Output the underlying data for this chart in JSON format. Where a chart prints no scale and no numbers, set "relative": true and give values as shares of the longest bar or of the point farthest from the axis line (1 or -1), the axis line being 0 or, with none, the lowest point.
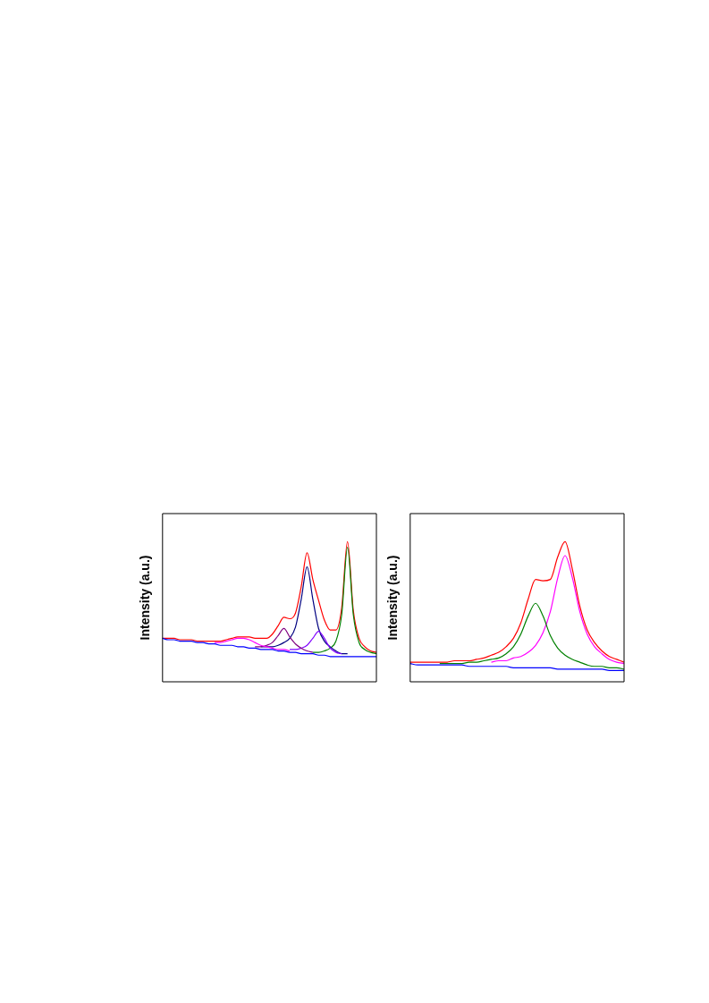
{
  "chart_data": [
    {
      "type": "line",
      "ylabel": "Intensity (a.u.)",
      "relative": true,
      "categories": [
        null,
        null,
        null,
        null,
        null,
        null,
        null,
        null,
        null,
        null,
        null,
        null,
        null,
        null,
        null,
        null,
        null,
        null,
        null,
        null,
        null,
        null,
        null,
        null,
        null,
        null,
        null,
        null,
        null,
        null,
        null,
        null,
        null,
        null,
        null,
        null,
        null,
        null
      ],
      "series": [
        {
          "color": "#0000ff",
          "values": [
            0.31,
            0.3,
            0.3,
            0.29,
            0.29,
            0.29,
            0.28,
            0.28,
            0.27,
            0.27,
            0.26,
            0.26,
            0.26,
            0.25,
            0.25,
            0.24,
            0.24,
            0.23,
            0.23,
            0.23,
            0.22,
            0.22,
            0.21,
            0.21,
            0.2,
            0.2,
            0.2,
            0.19,
            0.19,
            0.18,
            0.18,
            0.18,
            0.18,
            0.18,
            0.18,
            0.18,
            0.18,
            0.18
          ]
        },
        {
          "color": "#ff00ff",
          "values": [
            null,
            null,
            null,
            null,
            null,
            null,
            null,
            null,
            null,
            0.28,
            0.28,
            0.29,
            0.3,
            0.31,
            0.31,
            0.3,
            0.28,
            0.26,
            0.25,
            0.24,
            0.23,
            0.23,
            0.22,
            null,
            null,
            null,
            null,
            null,
            null,
            null,
            null,
            null,
            null,
            null,
            null,
            null,
            null,
            null
          ]
        },
        {
          "color": "#800080",
          "values": [
            null,
            null,
            null,
            null,
            null,
            null,
            null,
            null,
            null,
            null,
            null,
            null,
            null,
            null,
            null,
            null,
            0.25,
            0.25,
            0.26,
            0.28,
            0.33,
            0.38,
            0.32,
            0.27,
            0.24,
            0.22,
            0.21,
            null,
            null,
            null,
            null,
            null,
            null,
            null,
            null,
            null,
            null,
            null
          ]
        },
        {
          "color": "#8000ff",
          "values": [
            null,
            null,
            null,
            null,
            null,
            null,
            null,
            null,
            null,
            null,
            null,
            null,
            null,
            null,
            null,
            null,
            null,
            null,
            null,
            null,
            null,
            null,
            0.23,
            0.23,
            0.24,
            0.26,
            0.31,
            0.36,
            0.31,
            0.24,
            0.21,
            0.2,
            null,
            null,
            null,
            null,
            null,
            null
          ]
        },
        {
          "color": "#000080",
          "values": [
            null,
            null,
            null,
            null,
            null,
            null,
            null,
            null,
            null,
            null,
            null,
            null,
            null,
            null,
            null,
            null,
            null,
            0.25,
            0.25,
            0.25,
            0.26,
            0.28,
            0.31,
            0.39,
            0.59,
            0.82,
            0.59,
            0.38,
            0.29,
            0.25,
            0.22,
            0.2,
            0.2,
            null,
            null,
            null,
            null,
            null
          ]
        },
        {
          "color": "#008000",
          "values": [
            null,
            null,
            null,
            null,
            null,
            null,
            null,
            null,
            null,
            null,
            null,
            null,
            null,
            null,
            null,
            null,
            null,
            null,
            null,
            null,
            null,
            null,
            null,
            null,
            null,
            null,
            0.21,
            0.21,
            0.22,
            0.24,
            0.29,
            0.48,
            0.96,
            0.48,
            0.28,
            0.23,
            0.21,
            0.2
          ]
        },
        {
          "color": "#ff0000",
          "values": [
            0.31,
            0.31,
            0.31,
            0.3,
            0.3,
            0.3,
            0.29,
            0.29,
            0.29,
            0.29,
            0.29,
            0.3,
            0.31,
            0.32,
            0.32,
            0.32,
            0.31,
            0.31,
            0.31,
            0.34,
            0.4,
            0.46,
            0.45,
            0.49,
            0.68,
            0.92,
            0.73,
            0.58,
            0.44,
            0.37,
            0.37,
            0.53,
            1.0,
            0.51,
            0.31,
            0.25,
            0.22,
            0.21
          ]
        }
      ]
    },
    {
      "type": "line",
      "ylabel": "Intensity (a.u.)",
      "relative": true,
      "categories": [
        null,
        null,
        null,
        null,
        null,
        null,
        null,
        null,
        null,
        null,
        null,
        null,
        null,
        null,
        null,
        null,
        null,
        null,
        null,
        null,
        null,
        null,
        null,
        null,
        null,
        null,
        null,
        null,
        null,
        null
      ],
      "series": [
        {
          "color": "#0000ff",
          "values": [
            0.13,
            0.12,
            0.12,
            0.12,
            0.12,
            0.12,
            0.12,
            0.12,
            0.11,
            0.11,
            0.11,
            0.11,
            0.11,
            0.11,
            0.1,
            0.1,
            0.1,
            0.1,
            0.1,
            0.1,
            0.09,
            0.09,
            0.09,
            0.09,
            0.09,
            0.09,
            0.09,
            0.08,
            0.08,
            0.08
          ]
        },
        {
          "color": "#008000",
          "values": [
            null,
            null,
            null,
            null,
            0.13,
            0.13,
            0.13,
            0.13,
            0.14,
            0.14,
            0.15,
            0.16,
            0.17,
            0.2,
            0.25,
            0.34,
            0.47,
            0.56,
            0.47,
            0.33,
            0.24,
            0.19,
            0.16,
            0.14,
            0.12,
            0.11,
            0.11,
            0.1,
            0.1,
            0.09
          ]
        },
        {
          "color": "#ff00ff",
          "values": [
            null,
            null,
            null,
            null,
            null,
            null,
            null,
            null,
            null,
            null,
            null,
            0.14,
            0.15,
            0.15,
            0.17,
            0.18,
            0.21,
            0.26,
            0.35,
            0.5,
            0.74,
            0.9,
            0.74,
            0.5,
            0.34,
            0.25,
            0.2,
            0.16,
            0.14,
            0.13
          ]
        },
        {
          "color": "#ff0000",
          "values": [
            0.14,
            0.14,
            0.14,
            0.14,
            0.14,
            0.14,
            0.15,
            0.15,
            0.15,
            0.16,
            0.17,
            0.19,
            0.21,
            0.25,
            0.31,
            0.42,
            0.59,
            0.73,
            0.72,
            0.73,
            0.89,
            1.0,
            0.8,
            0.54,
            0.37,
            0.28,
            0.22,
            0.18,
            0.16,
            0.14
          ]
        }
      ]
    }
  ]
}
